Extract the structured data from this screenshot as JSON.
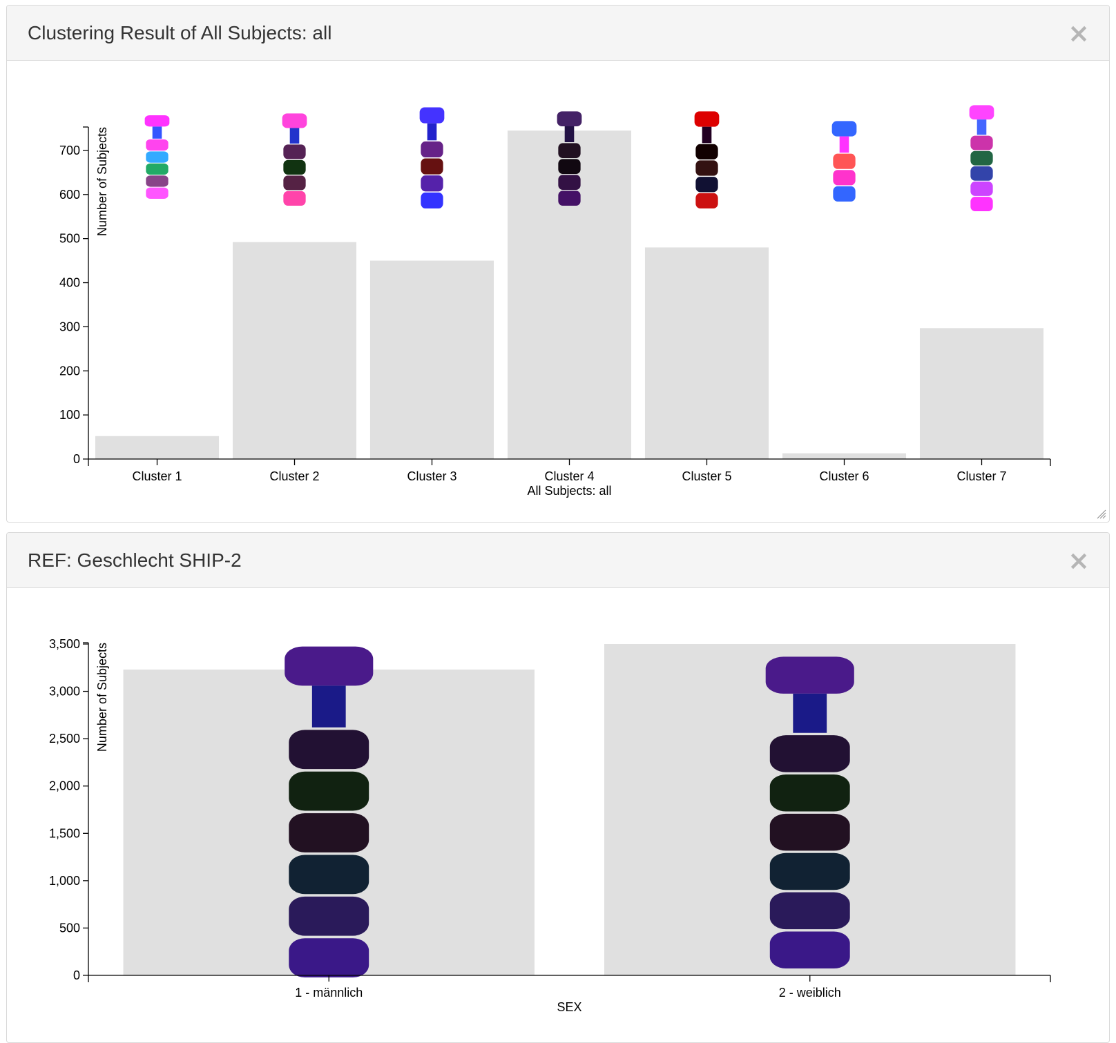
{
  "panels": [
    {
      "title": "Clustering Result of All Subjects: all",
      "close_label": "×"
    },
    {
      "title": "REF: Geschlecht SHIP-2",
      "close_label": "×"
    }
  ],
  "chart_data": [
    {
      "type": "bar",
      "categories": [
        "Cluster 1",
        "Cluster 2",
        "Cluster 3",
        "Cluster 4",
        "Cluster 5",
        "Cluster 6",
        "Cluster 7"
      ],
      "values": [
        52,
        492,
        450,
        745,
        480,
        13,
        297
      ],
      "xlabel": "All Subjects: all",
      "ylabel": "Number of Subjects",
      "yticks": [
        "0",
        "100",
        "200",
        "300",
        "400",
        "500",
        "600",
        "700"
      ],
      "ylim": [
        0,
        750
      ],
      "grid": false,
      "bar_color": "#e0e0e0",
      "glyph_colors": [
        [
          "#ff33ff",
          "#3355ff",
          "#ff44ee",
          "#33aaff",
          "#22aa66",
          "#884488",
          "#ff55ff"
        ],
        [
          "#ff44dd",
          "#2233cc",
          "#552255",
          "#113311",
          "#552244",
          "#ff44aa"
        ],
        [
          "#4433ff",
          "#2222cc",
          "#662288",
          "#661111",
          "#5522aa",
          "#3333ff"
        ],
        [
          "#442266",
          "#221144",
          "#221122",
          "#110811",
          "#331144",
          "#441166"
        ],
        [
          "#dd0000",
          "#220022",
          "#110000",
          "#331111",
          "#111133",
          "#cc1111"
        ],
        [
          "#3366ff",
          "#ff33ff",
          "#ff5555",
          "#ff33cc",
          "#3366ff"
        ],
        [
          "#ff44ff",
          "#4466ff",
          "#cc33aa",
          "#226644",
          "#3344aa",
          "#cc44ff",
          "#ff33ff"
        ]
      ]
    },
    {
      "type": "bar",
      "categories": [
        "1 - männlich",
        "2 - weiblich"
      ],
      "values": [
        3230,
        3500
      ],
      "xlabel": "SEX",
      "ylabel": "Number of Subjects",
      "yticks": [
        "0",
        "500",
        "1,000",
        "1,500",
        "2,000",
        "2,500",
        "3,000",
        "3,500"
      ],
      "ylim": [
        0,
        3500
      ],
      "grid": false,
      "bar_color": "#e0e0e0",
      "glyph_colors": [
        [
          "#4a1a8a",
          "#1a1a88",
          "#221133",
          "#112211",
          "#221122",
          "#112233",
          "#2a1a5a",
          "#3a1888"
        ],
        [
          "#4a1a8a",
          "#1a1a88",
          "#221133",
          "#112211",
          "#221122",
          "#112233",
          "#2a1a5a",
          "#3a1888"
        ]
      ]
    }
  ]
}
